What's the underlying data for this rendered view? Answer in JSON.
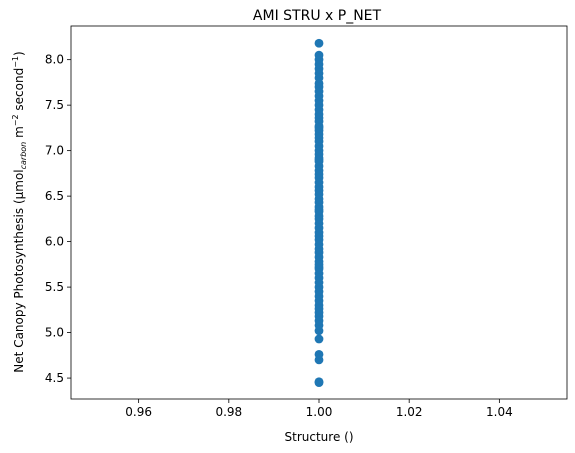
{
  "chart_data": {
    "type": "scatter",
    "title": "AMI STRU x P_NET",
    "xlabel": "Structure ()",
    "ylabel": {
      "prefix": "Net Canopy Photosynthesis (µmol",
      "subscript": "carbon",
      "mid1": " m",
      "sup1": "−2",
      "mid2": " second",
      "sup2": "−1",
      "suffix": ")"
    },
    "xlim": [
      0.945,
      1.055
    ],
    "ylim": [
      4.27,
      8.37
    ],
    "xticks": [
      "0.96",
      "0.98",
      "1.00",
      "1.02",
      "1.04"
    ],
    "xtick_values": [
      0.96,
      0.98,
      1.0,
      1.02,
      1.04
    ],
    "yticks": [
      "4.5",
      "5.0",
      "5.5",
      "6.0",
      "6.5",
      "7.0",
      "7.5",
      "8.0"
    ],
    "ytick_values": [
      4.5,
      5.0,
      5.5,
      6.0,
      6.5,
      7.0,
      7.5,
      8.0
    ],
    "grid": false,
    "color": "#1f77b4",
    "points": {
      "x": [
        1.0,
        1.0,
        1.0,
        1.0,
        1.0,
        1.0,
        1.0,
        1.0,
        1.0,
        1.0,
        1.0,
        1.0,
        1.0,
        1.0,
        1.0,
        1.0,
        1.0,
        1.0,
        1.0,
        1.0,
        1.0,
        1.0,
        1.0,
        1.0,
        1.0,
        1.0,
        1.0,
        1.0,
        1.0,
        1.0,
        1.0,
        1.0,
        1.0,
        1.0,
        1.0,
        1.0,
        1.0,
        1.0,
        1.0,
        1.0,
        1.0,
        1.0,
        1.0,
        1.0,
        1.0,
        1.0,
        1.0,
        1.0,
        1.0,
        1.0,
        1.0,
        1.0,
        1.0,
        1.0,
        1.0,
        1.0,
        1.0,
        1.0,
        1.0,
        1.0,
        1.0,
        1.0,
        1.0,
        1.0,
        1.0,
        1.0,
        1.0,
        1.0,
        1.0,
        1.0,
        1.0,
        1.0,
        1.0,
        1.0,
        1.0,
        1.0
      ],
      "y": [
        4.45,
        4.46,
        4.7,
        4.76,
        4.93,
        5.02,
        5.08,
        5.13,
        5.18,
        5.22,
        5.3,
        5.35,
        5.4,
        5.45,
        5.5,
        5.55,
        5.6,
        5.65,
        5.7,
        5.72,
        5.78,
        5.83,
        5.88,
        5.92,
        5.97,
        6.02,
        6.06,
        6.1,
        6.15,
        6.2,
        6.25,
        6.28,
        6.33,
        6.38,
        6.43,
        6.47,
        6.52,
        6.56,
        6.6,
        6.65,
        6.7,
        6.74,
        6.78,
        6.83,
        6.88,
        6.92,
        6.96,
        7.0,
        7.05,
        7.1,
        7.14,
        7.18,
        7.22,
        7.27,
        7.32,
        7.36,
        7.4,
        7.45,
        7.5,
        7.55,
        7.6,
        7.65,
        7.7,
        7.74,
        7.8,
        7.85,
        7.9,
        7.95,
        8.0,
        8.05,
        8.18,
        5.26,
        6.35,
        6.9,
        7.25,
        5.75
      ]
    }
  }
}
